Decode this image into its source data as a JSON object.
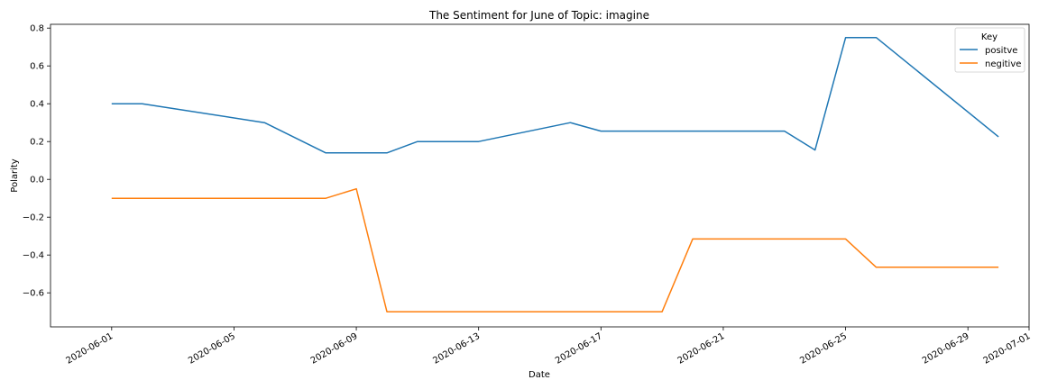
{
  "chart_data": {
    "type": "line",
    "title": "The Sentiment for June of Topic: imagine",
    "xlabel": "Date",
    "ylabel": "Polarity",
    "xlim": [
      "2020-05-30",
      "2020-07-01"
    ],
    "ylim": [
      -0.78,
      0.82
    ],
    "x_ticks": [
      "2020-06-01",
      "2020-06-05",
      "2020-06-09",
      "2020-06-13",
      "2020-06-17",
      "2020-06-21",
      "2020-06-25",
      "2020-06-29",
      "2020-07-01"
    ],
    "y_ticks": [
      "0.8",
      "0.6",
      "0.4",
      "0.2",
      "0.0",
      "−0.2",
      "−0.4",
      "−0.6"
    ],
    "y_tick_values": [
      0.8,
      0.6,
      0.4,
      0.2,
      0.0,
      -0.2,
      -0.4,
      -0.6
    ],
    "grid": false,
    "legend": {
      "title": "Key",
      "placement": "top-right"
    },
    "series": [
      {
        "name": "positve",
        "color": "#1f77b4",
        "x": [
          "2020-06-01",
          "2020-06-02",
          "2020-06-06",
          "2020-06-08",
          "2020-06-10",
          "2020-06-11",
          "2020-06-13",
          "2020-06-16",
          "2020-06-17",
          "2020-06-23",
          "2020-06-24",
          "2020-06-25",
          "2020-06-26",
          "2020-06-30"
        ],
        "y": [
          0.4,
          0.4,
          0.3,
          0.14,
          0.14,
          0.2,
          0.2,
          0.3,
          0.255,
          0.255,
          0.155,
          0.75,
          0.75,
          0.225
        ]
      },
      {
        "name": "negitive",
        "color": "#ff7f0e",
        "x": [
          "2020-06-01",
          "2020-06-08",
          "2020-06-09",
          "2020-06-10",
          "2020-06-19",
          "2020-06-20",
          "2020-06-25",
          "2020-06-26",
          "2020-06-30"
        ],
        "y": [
          -0.1,
          -0.1,
          -0.05,
          -0.7,
          -0.7,
          -0.315,
          -0.315,
          -0.465,
          -0.465
        ]
      }
    ]
  }
}
